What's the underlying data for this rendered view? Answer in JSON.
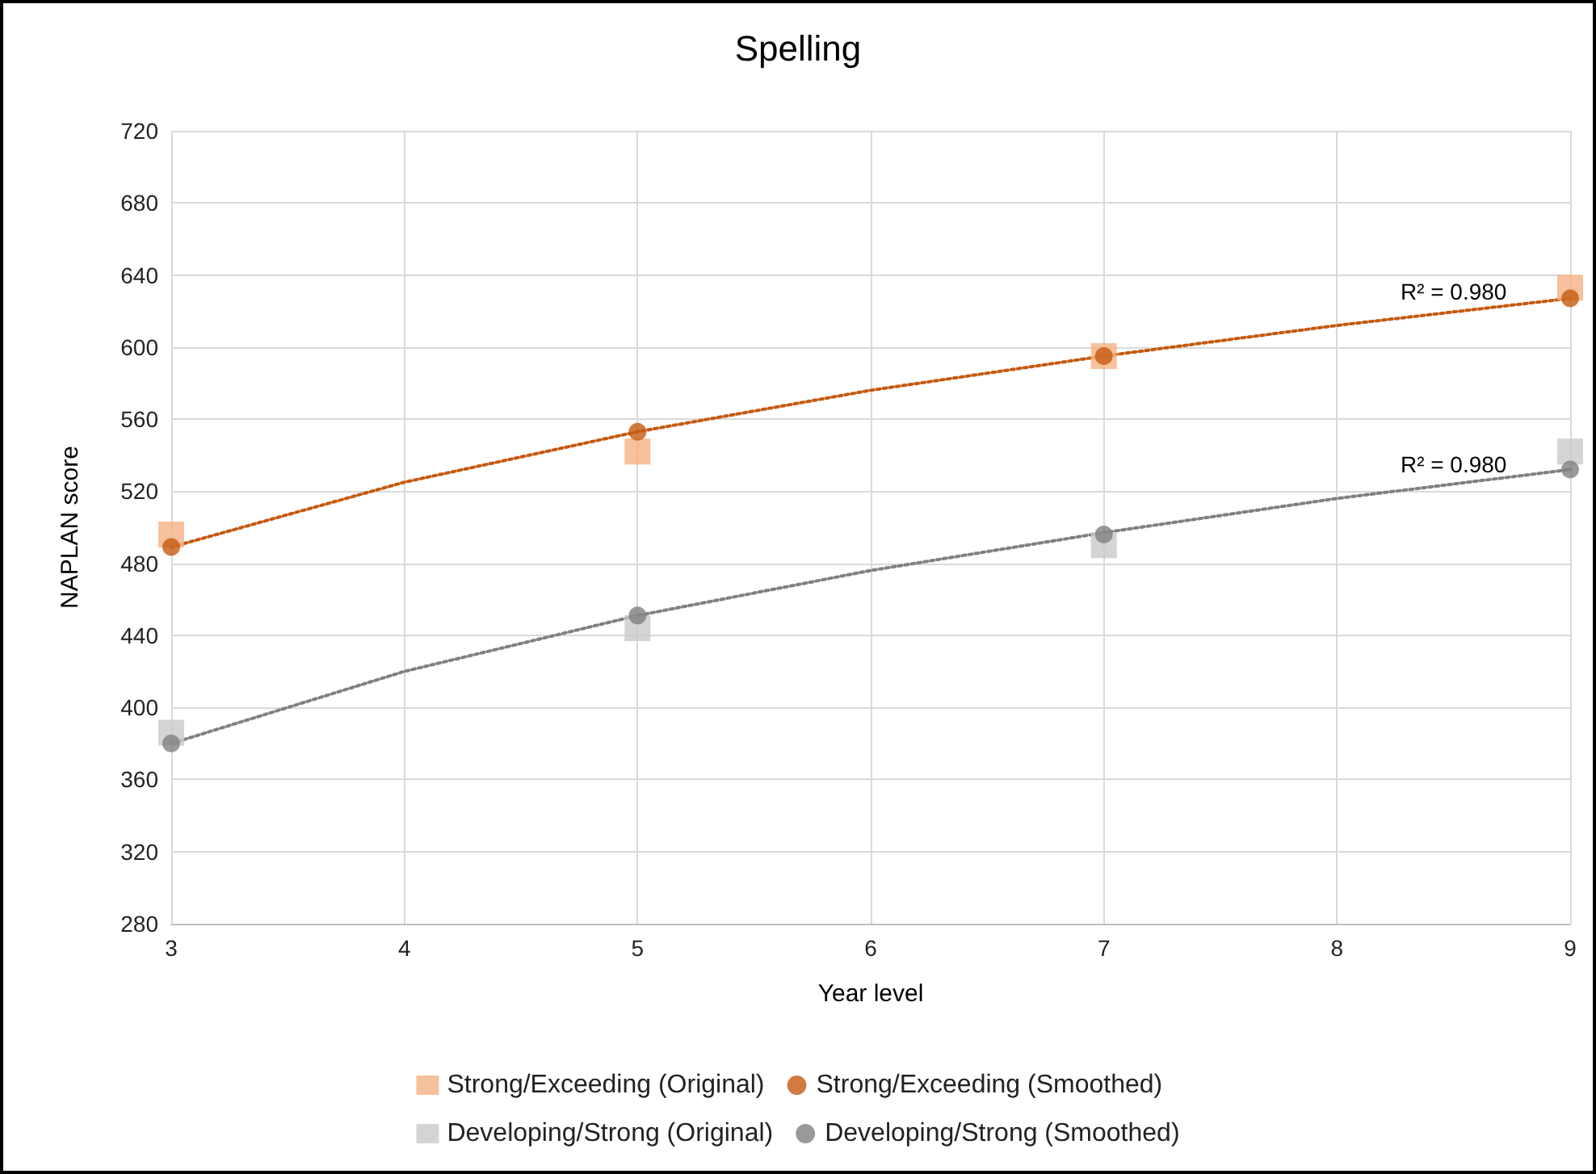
{
  "chart_data": {
    "type": "scatter",
    "title": "Spelling",
    "xlabel": "Year level",
    "ylabel": "NAPLAN score",
    "xlim": [
      3,
      9
    ],
    "xticks": [
      3,
      4,
      5,
      6,
      7,
      8,
      9
    ],
    "ylim": [
      280,
      720
    ],
    "yticks": [
      280,
      320,
      360,
      400,
      440,
      480,
      520,
      560,
      600,
      640,
      680,
      720
    ],
    "grid": true,
    "legend": "bottom",
    "series": [
      {
        "name": "Strong/Exceeding (Original)",
        "marker": "square",
        "color": "#f4b183",
        "x": [
          3,
          5,
          7,
          9
        ],
        "values": [
          496,
          542,
          595,
          633
        ]
      },
      {
        "name": "Strong/Exceeding (Smoothed)",
        "marker": "circle",
        "color": "#c55a11",
        "x": [
          3,
          5,
          7,
          9
        ],
        "values": [
          489,
          553,
          595,
          627
        ]
      },
      {
        "name": "Developing/Strong (Original)",
        "marker": "square",
        "color": "#c9c9c9",
        "x": [
          3,
          5,
          7,
          9
        ],
        "values": [
          386,
          444,
          490,
          542
        ]
      },
      {
        "name": "Developing/Strong (Smoothed)",
        "marker": "circle",
        "color": "#808080",
        "x": [
          3,
          5,
          7,
          9
        ],
        "values": [
          380,
          451,
          496,
          532
        ]
      },
      {
        "type": "line",
        "marker": "none",
        "line_style": "dotted",
        "color": "#c55a11",
        "x": [
          3,
          4,
          5,
          6,
          7,
          8,
          9
        ],
        "values": [
          489,
          525,
          553,
          576,
          595,
          612,
          627
        ]
      },
      {
        "type": "line",
        "marker": "none",
        "line_style": "dotted",
        "color": "#808080",
        "x": [
          3,
          4,
          5,
          6,
          7,
          8,
          9
        ],
        "values": [
          380,
          420,
          451,
          476,
          497,
          516,
          532
        ]
      }
    ],
    "annotations": [
      {
        "text": "R² = 0.980",
        "x": 8.5,
        "y": 621
      },
      {
        "text": "R² = 0.980",
        "x": 8.5,
        "y": 525
      }
    ]
  }
}
